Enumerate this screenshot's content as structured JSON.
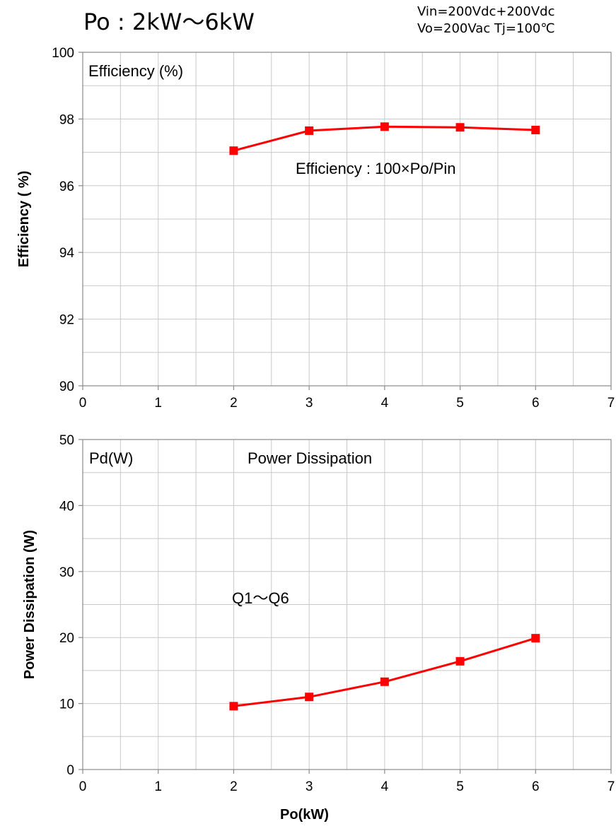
{
  "header": {
    "title": "Po : 2kW～6kW",
    "condition_line1": "Vin=200Vdc+200Vdc",
    "condition_line2": "Vo=200Vac Tj=100℃"
  },
  "colors": {
    "series": "#ff0000",
    "grid": "#c8c8c8",
    "frame": "#8a8a8a"
  },
  "chart_data": [
    {
      "type": "line",
      "title": "",
      "xlabel": "",
      "ylabel": "Efficiency ( %)",
      "xlim": [
        0,
        7
      ],
      "ylim": [
        90,
        100
      ],
      "x_ticks": [
        0,
        1,
        2,
        3,
        4,
        5,
        6,
        7
      ],
      "y_ticks": [
        90,
        92,
        94,
        96,
        98,
        100
      ],
      "grid": true,
      "annotations": [
        "Efficiency (%)",
        "Efficiency : 100×Po/Pin"
      ],
      "series": [
        {
          "x": [
            2,
            3,
            4,
            5,
            6
          ],
          "values": [
            97.05,
            97.65,
            97.77,
            97.75,
            97.67
          ]
        }
      ]
    },
    {
      "type": "line",
      "title": "",
      "xlabel": "Po(kW)",
      "ylabel": "Power Dissipation (W)",
      "xlim": [
        0,
        7
      ],
      "ylim": [
        0,
        50
      ],
      "x_ticks": [
        0,
        1,
        2,
        3,
        4,
        5,
        6,
        7
      ],
      "y_ticks": [
        0,
        10,
        20,
        30,
        40,
        50
      ],
      "grid": true,
      "annotations": [
        "Pd(W)",
        "Power Dissipation",
        "Q1～Q6"
      ],
      "series": [
        {
          "x": [
            2,
            3,
            4,
            5,
            6
          ],
          "values": [
            9.6,
            11.0,
            13.3,
            16.4,
            19.9
          ]
        }
      ]
    }
  ]
}
